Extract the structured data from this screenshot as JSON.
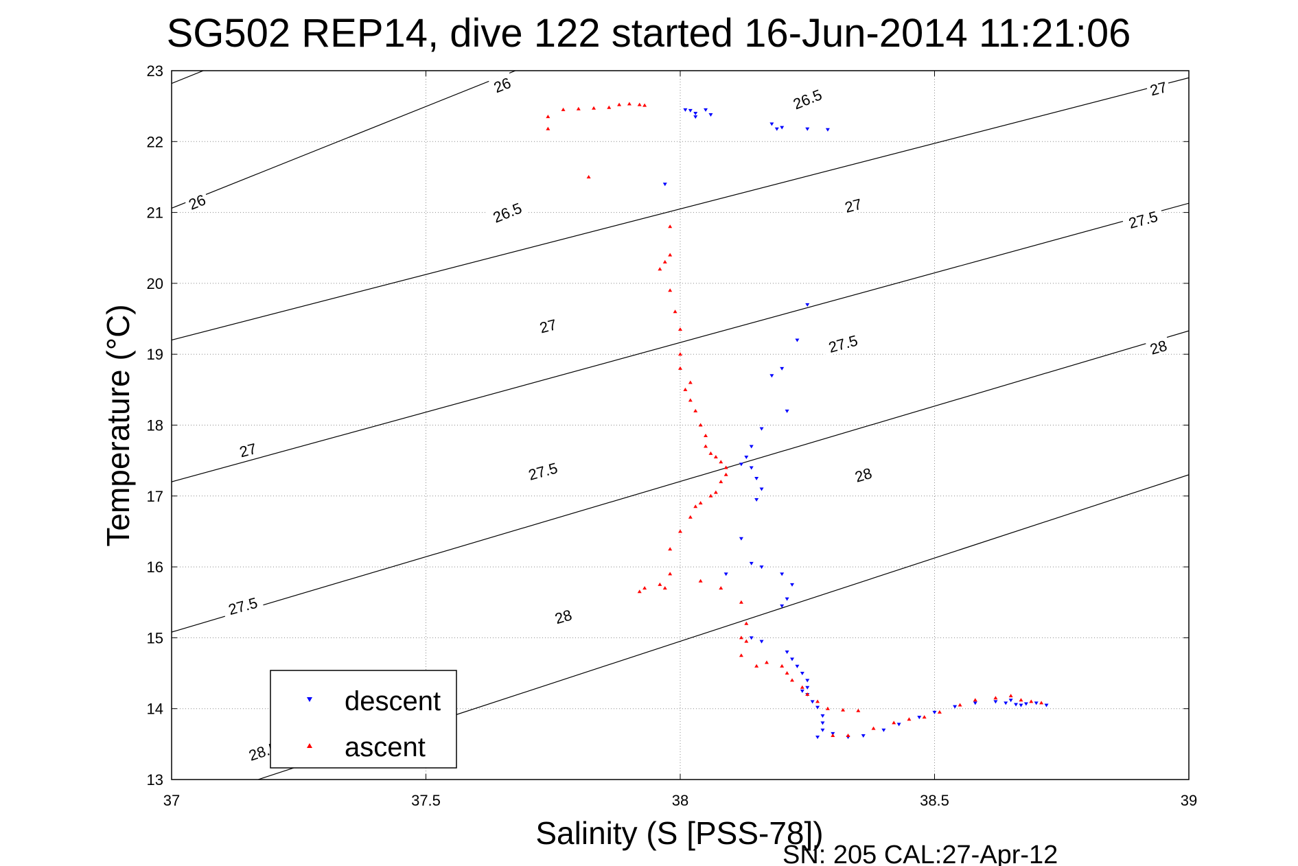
{
  "chart_data": {
    "type": "scatter",
    "title": "SG502 REP14, dive 122 started 16-Jun-2014 11:21:06",
    "xlabel": "Salinity (S [PSS-78])",
    "ylabel": "Temperature (°C)",
    "xlim": [
      37,
      39
    ],
    "ylim": [
      13,
      23
    ],
    "x_ticks": [
      "37",
      "37.5",
      "38",
      "38.5",
      "39"
    ],
    "y_ticks": [
      "13",
      "14",
      "15",
      "16",
      "17",
      "18",
      "19",
      "20",
      "21",
      "22",
      "23"
    ],
    "grid": true,
    "legend_position": "bottom-left",
    "footer": "SN: 205  CAL:27-Apr-12",
    "isopycnals": [
      {
        "label": "26",
        "points": [
          [
            37.0,
            22.82
          ],
          [
            39.0,
            28.6
          ]
        ]
      },
      {
        "label": "26.5",
        "points": [
          [
            37.0,
            21.06
          ],
          [
            39.0,
            26.8
          ]
        ]
      },
      {
        "label": "27",
        "points": [
          [
            37.0,
            19.2
          ],
          [
            39.0,
            22.9
          ]
        ]
      },
      {
        "label": "27.5",
        "points": [
          [
            37.0,
            17.2
          ],
          [
            39.0,
            21.13
          ]
        ]
      },
      {
        "label": "28",
        "points": [
          [
            37.0,
            15.08
          ],
          [
            39.0,
            19.33
          ]
        ]
      },
      {
        "label": "28.5",
        "points": [
          [
            37.0,
            12.6
          ],
          [
            39.0,
            17.3
          ]
        ]
      }
    ],
    "isopycnal_labels": [
      {
        "text": "26",
        "x": 37.05,
        "y": 21.15
      },
      {
        "text": "26",
        "x": 37.65,
        "y": 22.8
      },
      {
        "text": "26.5",
        "x": 37.66,
        "y": 21.0
      },
      {
        "text": "26.5",
        "x": 38.25,
        "y": 22.6
      },
      {
        "text": "27",
        "x": 37.15,
        "y": 17.65
      },
      {
        "text": "27",
        "x": 37.74,
        "y": 19.4
      },
      {
        "text": "27",
        "x": 38.34,
        "y": 21.1
      },
      {
        "text": "27",
        "x": 38.94,
        "y": 22.75
      },
      {
        "text": "27.5",
        "x": 37.14,
        "y": 15.45
      },
      {
        "text": "27.5",
        "x": 37.73,
        "y": 17.35
      },
      {
        "text": "27.5",
        "x": 38.32,
        "y": 19.15
      },
      {
        "text": "27.5",
        "x": 38.91,
        "y": 20.9
      },
      {
        "text": "28",
        "x": 37.77,
        "y": 15.3
      },
      {
        "text": "28",
        "x": 38.36,
        "y": 17.3
      },
      {
        "text": "28",
        "x": 38.94,
        "y": 19.1
      },
      {
        "text": "28.5",
        "x": 37.18,
        "y": 13.4
      }
    ],
    "series": [
      {
        "name": "descent",
        "color": "#0000ff",
        "marker": "triangle-down",
        "points": [
          [
            38.01,
            22.45
          ],
          [
            38.02,
            22.44
          ],
          [
            38.03,
            22.4
          ],
          [
            38.06,
            22.38
          ],
          [
            38.05,
            22.45
          ],
          [
            38.03,
            22.35
          ],
          [
            38.18,
            22.25
          ],
          [
            38.19,
            22.18
          ],
          [
            38.25,
            22.18
          ],
          [
            38.29,
            22.17
          ],
          [
            38.2,
            22.2
          ],
          [
            37.97,
            21.4
          ],
          [
            38.25,
            19.7
          ],
          [
            38.23,
            19.2
          ],
          [
            38.2,
            18.8
          ],
          [
            38.18,
            18.7
          ],
          [
            38.21,
            18.2
          ],
          [
            38.16,
            17.95
          ],
          [
            38.14,
            17.7
          ],
          [
            38.13,
            17.55
          ],
          [
            38.12,
            17.45
          ],
          [
            38.14,
            17.4
          ],
          [
            38.15,
            17.25
          ],
          [
            38.16,
            17.1
          ],
          [
            38.15,
            16.95
          ],
          [
            38.12,
            16.4
          ],
          [
            38.14,
            16.05
          ],
          [
            38.16,
            16.0
          ],
          [
            38.2,
            15.9
          ],
          [
            38.22,
            15.75
          ],
          [
            38.21,
            15.55
          ],
          [
            38.2,
            15.45
          ],
          [
            38.09,
            15.9
          ],
          [
            38.14,
            15.0
          ],
          [
            38.16,
            14.95
          ],
          [
            38.21,
            14.8
          ],
          [
            38.22,
            14.7
          ],
          [
            38.23,
            14.6
          ],
          [
            38.24,
            14.5
          ],
          [
            38.25,
            14.4
          ],
          [
            38.25,
            14.3
          ],
          [
            38.24,
            14.25
          ],
          [
            38.25,
            14.2
          ],
          [
            38.26,
            14.1
          ],
          [
            38.27,
            14.02
          ],
          [
            38.28,
            13.9
          ],
          [
            38.28,
            13.8
          ],
          [
            38.28,
            13.7
          ],
          [
            38.27,
            13.6
          ],
          [
            38.3,
            13.65
          ],
          [
            38.33,
            13.6
          ],
          [
            38.36,
            13.62
          ],
          [
            38.4,
            13.7
          ],
          [
            38.43,
            13.78
          ],
          [
            38.47,
            13.88
          ],
          [
            38.5,
            13.95
          ],
          [
            38.54,
            14.03
          ],
          [
            38.58,
            14.08
          ],
          [
            38.62,
            14.1
          ],
          [
            38.64,
            14.08
          ],
          [
            38.66,
            14.06
          ],
          [
            38.68,
            14.07
          ],
          [
            38.7,
            14.08
          ],
          [
            38.72,
            14.05
          ],
          [
            38.65,
            14.12
          ],
          [
            38.67,
            14.05
          ]
        ]
      },
      {
        "name": "ascent",
        "color": "#ff0000",
        "marker": "triangle-up",
        "points": [
          [
            37.74,
            22.35
          ],
          [
            37.74,
            22.18
          ],
          [
            37.77,
            22.45
          ],
          [
            37.8,
            22.46
          ],
          [
            37.83,
            22.47
          ],
          [
            37.86,
            22.48
          ],
          [
            37.88,
            22.52
          ],
          [
            37.9,
            22.53
          ],
          [
            37.92,
            22.52
          ],
          [
            37.93,
            22.51
          ],
          [
            37.82,
            21.5
          ],
          [
            37.98,
            20.8
          ],
          [
            37.98,
            20.4
          ],
          [
            37.97,
            20.3
          ],
          [
            37.96,
            20.2
          ],
          [
            37.98,
            19.9
          ],
          [
            37.99,
            19.6
          ],
          [
            38.0,
            19.35
          ],
          [
            38.0,
            19.0
          ],
          [
            38.0,
            18.8
          ],
          [
            38.02,
            18.6
          ],
          [
            38.01,
            18.5
          ],
          [
            38.02,
            18.35
          ],
          [
            38.03,
            18.2
          ],
          [
            38.04,
            18.0
          ],
          [
            38.05,
            17.85
          ],
          [
            38.05,
            17.7
          ],
          [
            38.06,
            17.6
          ],
          [
            38.07,
            17.55
          ],
          [
            38.08,
            17.48
          ],
          [
            38.09,
            17.4
          ],
          [
            38.09,
            17.3
          ],
          [
            38.08,
            17.2
          ],
          [
            38.07,
            17.05
          ],
          [
            38.06,
            17.0
          ],
          [
            38.04,
            16.9
          ],
          [
            38.03,
            16.85
          ],
          [
            38.02,
            16.7
          ],
          [
            38.0,
            16.5
          ],
          [
            37.98,
            16.25
          ],
          [
            37.98,
            15.9
          ],
          [
            37.97,
            15.7
          ],
          [
            37.93,
            15.7
          ],
          [
            37.92,
            15.65
          ],
          [
            37.96,
            15.75
          ],
          [
            38.04,
            15.8
          ],
          [
            38.08,
            15.7
          ],
          [
            38.12,
            15.5
          ],
          [
            38.13,
            15.2
          ],
          [
            38.12,
            15.0
          ],
          [
            38.13,
            14.95
          ],
          [
            38.12,
            14.75
          ],
          [
            38.15,
            14.6
          ],
          [
            38.17,
            14.65
          ],
          [
            38.2,
            14.6
          ],
          [
            38.21,
            14.5
          ],
          [
            38.22,
            14.4
          ],
          [
            38.24,
            14.3
          ],
          [
            38.25,
            14.2
          ],
          [
            38.27,
            14.1
          ],
          [
            38.29,
            14.0
          ],
          [
            38.32,
            13.98
          ],
          [
            38.35,
            13.97
          ],
          [
            38.3,
            13.62
          ],
          [
            38.33,
            13.62
          ],
          [
            38.38,
            13.72
          ],
          [
            38.42,
            13.8
          ],
          [
            38.45,
            13.85
          ],
          [
            38.48,
            13.88
          ],
          [
            38.51,
            13.95
          ],
          [
            38.55,
            14.05
          ],
          [
            38.58,
            14.12
          ],
          [
            38.62,
            14.15
          ],
          [
            38.65,
            14.18
          ],
          [
            38.67,
            14.12
          ],
          [
            38.69,
            14.1
          ],
          [
            38.71,
            14.08
          ]
        ]
      }
    ]
  }
}
